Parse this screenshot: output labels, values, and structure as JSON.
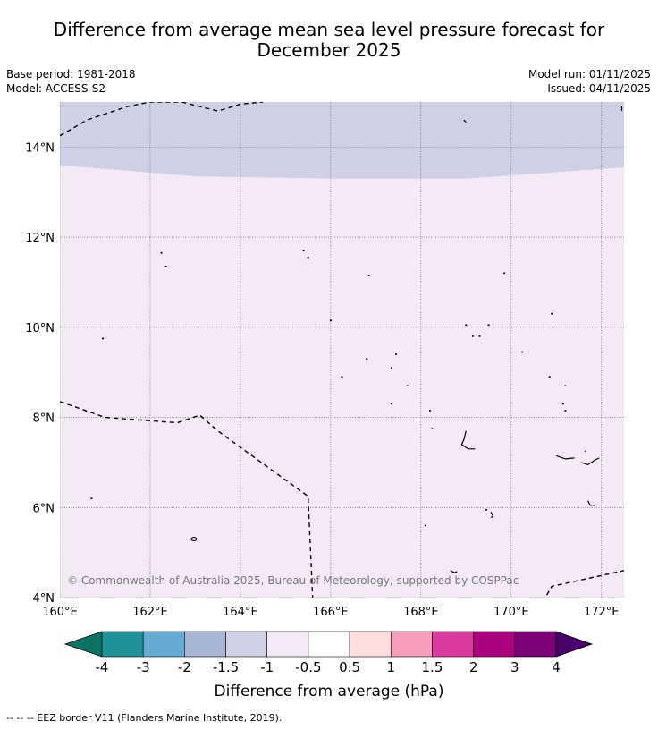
{
  "header": {
    "title_line1": "Difference from average mean sea level pressure forecast for",
    "title_line2": "December 2025",
    "base_period": "Base period: 1981-2018",
    "model": "Model: ACCESS-S2",
    "model_run": "Model run: 01/11/2025",
    "issued": "Issued: 04/11/2025"
  },
  "map": {
    "lon_range": [
      160,
      172.5
    ],
    "lat_range": [
      4,
      15
    ],
    "lon_ticks": [
      160,
      162,
      164,
      166,
      168,
      170,
      172
    ],
    "lon_tick_labels": [
      "160°E",
      "162°E",
      "164°E",
      "166°E",
      "168°E",
      "170°E",
      "172°E"
    ],
    "lat_ticks": [
      4,
      6,
      8,
      10,
      12,
      14
    ],
    "lat_tick_labels": [
      "4°N",
      "6°N",
      "8°N",
      "10°N",
      "12°N",
      "14°N"
    ],
    "regions": [
      {
        "category": "-1.5 to -1",
        "color": "#cfd0e5",
        "boundary_lat_at_lon": [
          [
            160,
            13.6
          ],
          [
            163,
            13.35
          ],
          [
            166,
            13.3
          ],
          [
            169,
            13.3
          ],
          [
            172.5,
            13.55
          ]
        ]
      },
      {
        "category": "-1 to -0.5",
        "color": "#f3eaf5"
      }
    ],
    "eez_borders": [
      [
        [
          160,
          14.25
        ],
        [
          160.6,
          14.6
        ],
        [
          161.5,
          14.9
        ],
        [
          162,
          15
        ],
        [
          162.7,
          15
        ],
        [
          163.5,
          14.8
        ],
        [
          164,
          14.95
        ],
        [
          164.5,
          15
        ]
      ],
      [
        [
          160,
          8.35
        ],
        [
          161,
          8.0
        ],
        [
          162.6,
          7.88
        ],
        [
          163.1,
          8.05
        ],
        [
          163.5,
          7.7
        ],
        [
          164.6,
          6.9
        ],
        [
          165.5,
          6.25
        ],
        [
          165.6,
          4.0
        ]
      ],
      [
        [
          170.7,
          3.9
        ],
        [
          170.9,
          4.25
        ],
        [
          172.5,
          4.6
        ]
      ]
    ],
    "islands": [
      [
        162.25,
        11.65
      ],
      [
        162.35,
        11.35
      ],
      [
        165.4,
        11.7
      ],
      [
        165.5,
        11.55
      ],
      [
        166.85,
        11.15
      ],
      [
        169.85,
        11.2
      ],
      [
        160.95,
        9.75
      ],
      [
        166.0,
        10.15
      ],
      [
        169.0,
        10.05
      ],
      [
        169.5,
        10.05
      ],
      [
        170.9,
        10.3
      ],
      [
        169.15,
        9.8
      ],
      [
        169.3,
        9.8
      ],
      [
        170.25,
        9.45
      ],
      [
        167.45,
        9.4
      ],
      [
        166.8,
        9.3
      ],
      [
        167.35,
        9.1
      ],
      [
        166.25,
        8.9
      ],
      [
        167.7,
        8.7
      ],
      [
        170.85,
        8.9
      ],
      [
        171.2,
        8.7
      ],
      [
        171.15,
        8.3
      ],
      [
        171.2,
        8.15
      ],
      [
        167.35,
        8.3
      ],
      [
        168.2,
        8.15
      ],
      [
        168.25,
        7.75
      ],
      [
        160.7,
        6.2
      ],
      [
        169.45,
        5.95
      ],
      [
        168.1,
        5.6
      ],
      [
        171.65,
        7.25
      ]
    ],
    "atolls": [
      [
        [
          169.0,
          7.7
        ],
        [
          168.95,
          7.5
        ],
        [
          168.9,
          7.4
        ],
        [
          169.05,
          7.3
        ],
        [
          169.2,
          7.3
        ]
      ],
      [
        [
          171.0,
          7.15
        ],
        [
          171.2,
          7.08
        ],
        [
          171.4,
          7.1
        ]
      ],
      [
        [
          171.55,
          7.0
        ],
        [
          171.7,
          6.95
        ],
        [
          171.85,
          7.05
        ],
        [
          171.95,
          7.1
        ]
      ],
      [
        [
          169.55,
          5.9
        ],
        [
          169.6,
          5.8
        ],
        [
          169.55,
          5.78
        ]
      ],
      [
        [
          171.7,
          6.15
        ],
        [
          171.75,
          6.05
        ],
        [
          171.85,
          6.05
        ]
      ],
      [
        [
          168.65,
          4.6
        ],
        [
          168.75,
          4.55
        ],
        [
          168.8,
          4.58
        ]
      ],
      [
        [
          169.0,
          14.55
        ],
        [
          168.95,
          14.6
        ]
      ],
      [
        [
          172.45,
          14.9
        ],
        [
          172.45,
          14.8
        ]
      ]
    ]
  },
  "copyright": "© Commonwealth of Australia 2025, Bureau of Meteorology, supported by COSPPac",
  "colorbar": {
    "title": "Difference from average (hPa)",
    "colors": [
      "#0d7365",
      "#1e9297",
      "#64aad3",
      "#a7b6d5",
      "#cfd0e5",
      "#f3eaf5",
      "#ffffff",
      "#ffdedf",
      "#f69eba",
      "#d93b9f",
      "#ab0380",
      "#7a0177",
      "#4a006a"
    ],
    "labels": [
      "-4",
      "-3",
      "-2",
      "-1.5",
      "-1",
      "-0.5",
      "0.5",
      "1",
      "1.5",
      "2",
      "3",
      "4"
    ]
  },
  "footnote": "--  --  -- EEZ border V11 (Flanders Marine Institute, 2019)."
}
